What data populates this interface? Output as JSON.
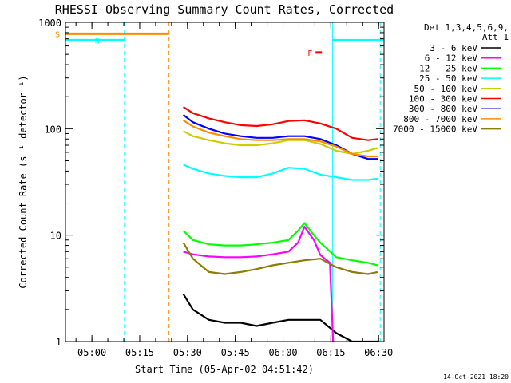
{
  "chart_data": {
    "type": "line",
    "title": "RHESSI Observing Summary Count Rates, Corrected",
    "xlabel": "Start Time (05-Apr-02 04:51:42)",
    "ylabel": "Corrected Count Rate (s⁻¹ detector⁻¹)",
    "y_scale": "log",
    "ylim": [
      1,
      1000
    ],
    "xlim_minutes": [
      0,
      100
    ],
    "x_tick_labels": [
      "05:00",
      "05:15",
      "05:30",
      "05:45",
      "06:00",
      "06:15",
      "06:30"
    ],
    "x_tick_minutes": [
      8.3,
      23.3,
      38.3,
      53.3,
      68.3,
      83.3,
      98.3
    ],
    "y_tick_labels": [
      "1",
      "10",
      "100",
      "1000"
    ],
    "y_tick_values": [
      1,
      10,
      100,
      1000
    ],
    "legend_header": [
      "Det 1,3,4,5,6,9,",
      "Att 1"
    ],
    "legend_position": "right",
    "footer": "14-Oct-2021 18:20",
    "series": [
      {
        "name": "3 - 6 keV",
        "color": "#000000",
        "x": [
          37,
          40,
          45,
          50,
          55,
          60,
          65,
          70,
          75,
          80,
          85,
          90,
          95,
          98
        ],
        "y": [
          2.8,
          2.0,
          1.6,
          1.5,
          1.5,
          1.4,
          1.5,
          1.6,
          1.6,
          1.6,
          1.2,
          1.0,
          1.0,
          1.0
        ]
      },
      {
        "name": "6 - 12 keV",
        "color": "#ff00ff",
        "x": [
          37,
          40,
          45,
          50,
          55,
          60,
          65,
          70,
          73,
          75,
          78,
          80,
          83,
          84
        ],
        "y": [
          7.0,
          6.6,
          6.3,
          6.2,
          6.2,
          6.3,
          6.6,
          7.0,
          8.5,
          12,
          9,
          6.5,
          5.5,
          1.0
        ]
      },
      {
        "name": "12 - 25 keV",
        "color": "#00ff00",
        "x": [
          37,
          40,
          45,
          50,
          55,
          60,
          65,
          70,
          73,
          75,
          78,
          80,
          85,
          90,
          95,
          98
        ],
        "y": [
          11,
          9.0,
          8.2,
          8.0,
          8.0,
          8.2,
          8.5,
          9.0,
          11,
          13,
          10,
          8.5,
          6.2,
          5.8,
          5.5,
          5.2
        ]
      },
      {
        "name": "25 - 50 keV",
        "color": "#00ffff",
        "x": [
          37,
          40,
          45,
          50,
          55,
          60,
          65,
          70,
          75,
          80,
          85,
          90,
          95,
          98
        ],
        "y": [
          46,
          42,
          38,
          36,
          35,
          35,
          38,
          43,
          42,
          37,
          35,
          33,
          33,
          34
        ]
      },
      {
        "name": "50 - 100 keV",
        "color": "#cccc00",
        "x": [
          37,
          40,
          45,
          50,
          55,
          60,
          65,
          70,
          75,
          80,
          85,
          90,
          95,
          98
        ],
        "y": [
          95,
          85,
          78,
          73,
          70,
          70,
          73,
          78,
          78,
          72,
          62,
          58,
          62,
          66
        ]
      },
      {
        "name": "100 - 300 keV",
        "color": "#ff0000",
        "x": [
          37,
          40,
          45,
          50,
          55,
          60,
          65,
          70,
          75,
          80,
          85,
          90,
          95,
          98
        ],
        "y": [
          160,
          140,
          125,
          115,
          108,
          106,
          110,
          118,
          120,
          112,
          100,
          82,
          78,
          80
        ]
      },
      {
        "name": "300 - 800 keV",
        "color": "#0000ff",
        "x": [
          37,
          40,
          45,
          50,
          55,
          60,
          65,
          70,
          75,
          80,
          85,
          90,
          95,
          98
        ],
        "y": [
          135,
          115,
          100,
          90,
          85,
          82,
          82,
          85,
          85,
          80,
          70,
          58,
          52,
          52
        ]
      },
      {
        "name": "800 - 7000 keV",
        "color": "#ff8c00",
        "x": [
          37,
          40,
          45,
          50,
          55,
          60,
          65,
          70,
          75,
          80,
          85,
          90,
          95,
          98
        ],
        "y": [
          120,
          105,
          92,
          85,
          80,
          78,
          78,
          80,
          80,
          76,
          68,
          58,
          55,
          55
        ]
      },
      {
        "name": "7000 - 15000 keV",
        "color": "#8b7d00",
        "x": [
          37,
          40,
          45,
          50,
          55,
          60,
          65,
          70,
          75,
          80,
          85,
          90,
          95,
          98
        ],
        "y": [
          8.5,
          6.0,
          4.5,
          4.3,
          4.5,
          4.8,
          5.2,
          5.5,
          5.8,
          6.0,
          5.0,
          4.5,
          4.3,
          4.5
        ]
      }
    ],
    "annotations": [
      {
        "text": "S",
        "color": "#ff8c00",
        "x_start": 0,
        "x_end": 32.5,
        "y": 780
      },
      {
        "text": "N",
        "color": "#00ffff",
        "x_start": 0,
        "x_end": 18.5,
        "y": 680
      },
      {
        "text": "F",
        "color": "#ff0000",
        "x_start": 78.5,
        "x_end": 80.5,
        "y": 520
      },
      {
        "text": "",
        "color": "#00ffff",
        "x_start": 83.8,
        "x_end": 100,
        "y": 680
      }
    ],
    "vlines": [
      {
        "x": 18.5,
        "color": "#00ffff",
        "dash": true
      },
      {
        "x": 32.5,
        "color": "#ff8c00",
        "dash": true
      },
      {
        "x": 83.8,
        "color": "#00ffff",
        "dash": false
      },
      {
        "x": 98.8,
        "color": "#00ffff",
        "dash": true
      }
    ]
  }
}
